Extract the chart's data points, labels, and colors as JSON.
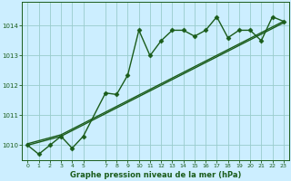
{
  "background_color": "#cceeff",
  "plot_bg_color": "#cceeff",
  "grid_color": "#99cccc",
  "line_color": "#1a5c1a",
  "xlim": [
    -0.5,
    23.5
  ],
  "ylim": [
    1009.5,
    1014.8
  ],
  "yticks": [
    1010,
    1011,
    1012,
    1013,
    1014
  ],
  "xticks": [
    0,
    1,
    2,
    3,
    4,
    5,
    7,
    8,
    9,
    10,
    11,
    12,
    13,
    14,
    15,
    16,
    17,
    18,
    19,
    20,
    21,
    22,
    23
  ],
  "xlabel": "Graphe pression niveau de la mer (hPa)",
  "line1_x": [
    0,
    1,
    2,
    3,
    4,
    5,
    7,
    8,
    9,
    10,
    11,
    12,
    13,
    14,
    15,
    16,
    17,
    18,
    19,
    20,
    21,
    22,
    23
  ],
  "line1_y": [
    1010.0,
    1009.7,
    1010.0,
    1010.3,
    1009.9,
    1010.3,
    1011.75,
    1011.7,
    1012.35,
    1013.85,
    1013.0,
    1013.5,
    1013.85,
    1013.85,
    1013.65,
    1013.85,
    1014.3,
    1013.6,
    1013.85,
    1013.85,
    1013.5,
    1014.3,
    1014.15
  ],
  "line2_x": [
    0,
    3,
    23
  ],
  "line2_y": [
    1010.0,
    1010.3,
    1014.1
  ],
  "line3_x": [
    0,
    3,
    23
  ],
  "line3_y": [
    1010.05,
    1010.35,
    1014.15
  ],
  "marker": "D",
  "markersize": 2.5,
  "linewidth": 1.0
}
